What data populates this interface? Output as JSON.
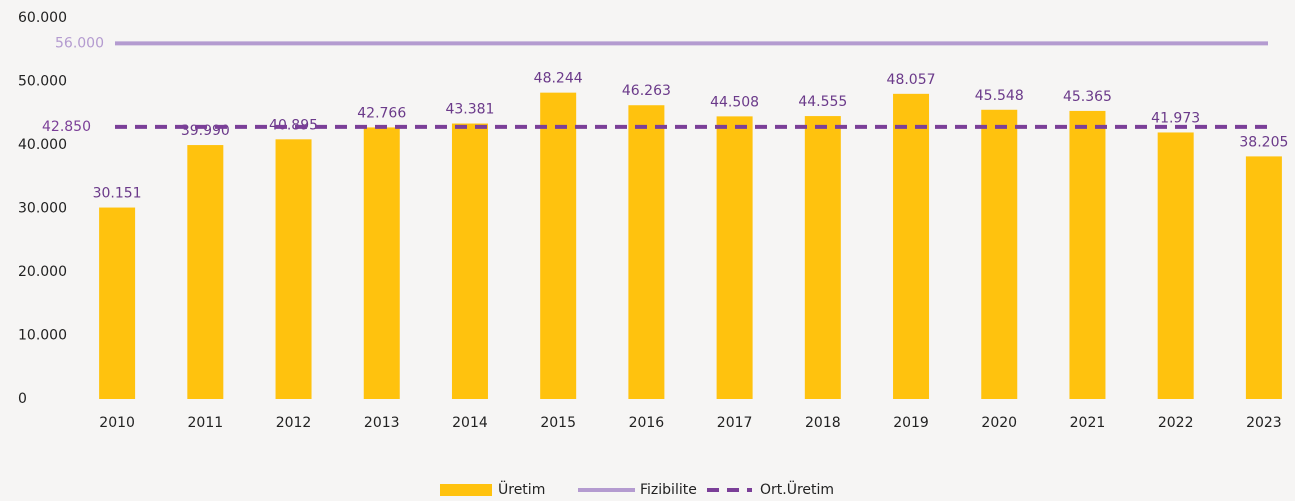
{
  "chart_data": {
    "type": "bar",
    "categories": [
      "2010",
      "2011",
      "2012",
      "2013",
      "2014",
      "2015",
      "2016",
      "2017",
      "2018",
      "2019",
      "2020",
      "2021",
      "2022",
      "2023"
    ],
    "series": [
      {
        "name": "Üretim",
        "color": "#ffc20e",
        "values": [
          30151,
          39990,
          40895,
          42766,
          43381,
          48244,
          46263,
          44508,
          44555,
          48057,
          45548,
          45365,
          41973,
          38205
        ],
        "value_labels": [
          "30.151",
          "39.990",
          "40.895",
          "42.766",
          "43.381",
          "48.244",
          "46.263",
          "44.508",
          "44.555",
          "48.057",
          "45.548",
          "45.365",
          "41.973",
          "38.205"
        ]
      }
    ],
    "reference_lines": [
      {
        "name": "Fizibilite",
        "value": 56000,
        "label": "56.000",
        "color": "#b49bd0",
        "style": "solid"
      },
      {
        "name": "Ort.Üretim",
        "value": 42850,
        "label": "42.850",
        "color": "#7b3f98",
        "style": "dashed"
      }
    ],
    "ylim": [
      0,
      60000
    ],
    "yticks": [
      0,
      {
        "value": 10000,
        "label": "10.000"
      },
      {
        "value": 20000,
        "label": "20.000"
      },
      {
        "value": 30000,
        "label": "30.000"
      },
      {
        "value": 40000,
        "label": "40.000"
      },
      {
        "value": 50000,
        "label": "50.000"
      },
      {
        "value": 60000,
        "label": "60.000"
      }
    ],
    "grid": false,
    "legend": "bottom"
  }
}
